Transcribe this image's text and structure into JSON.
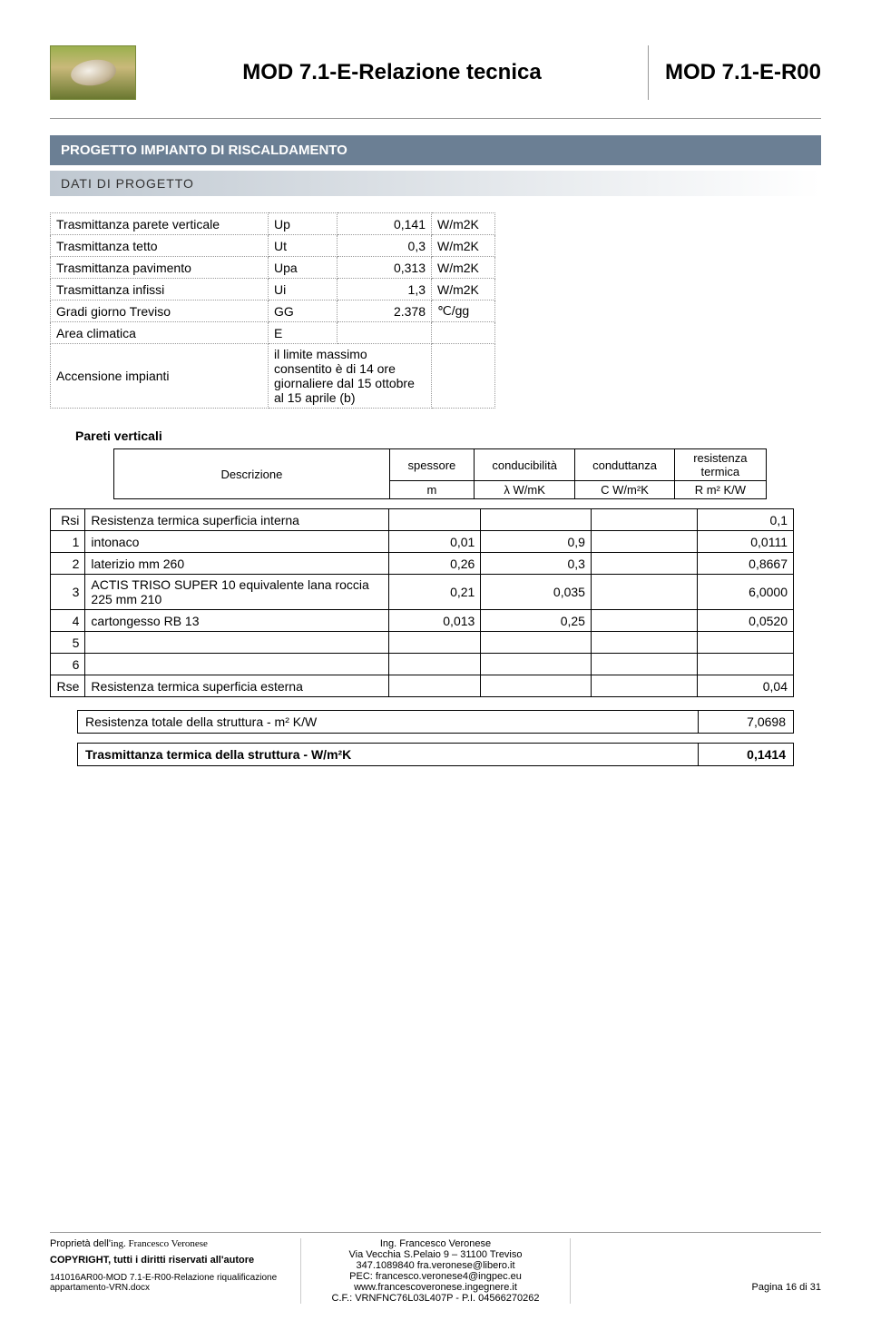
{
  "header": {
    "title_main": "MOD 7.1-E-Relazione tecnica",
    "title_code": "MOD 7.1-E-R00"
  },
  "section": {
    "title": "PROGETTO IMPIANTO DI RISCALDAMENTO",
    "subtitle": "DATI DI PROGETTO"
  },
  "params": {
    "rows": [
      {
        "label": "Trasmittanza parete verticale",
        "sym": "Up",
        "val": "0,141",
        "unit": "W/m2K"
      },
      {
        "label": "Trasmittanza tetto",
        "sym": "Ut",
        "val": "0,3",
        "unit": "W/m2K"
      },
      {
        "label": "Trasmittanza pavimento",
        "sym": "Upa",
        "val": "0,313",
        "unit": "W/m2K"
      },
      {
        "label": "Trasmittanza infissi",
        "sym": "Ui",
        "val": "1,3",
        "unit": "W/m2K"
      },
      {
        "label": "Gradi giorno Treviso",
        "sym": "GG",
        "val": "2.378",
        "unit": "℃/gg"
      },
      {
        "label": "Area climatica",
        "sym": "E",
        "val": "",
        "unit": ""
      },
      {
        "label": "Accensione impianti",
        "sym": "il limite massimo consentito è di 14 ore giornaliere dal 15 ottobre al 15 aprile (b)",
        "val": "",
        "unit": ""
      }
    ]
  },
  "pareti_label": "Pareti verticali",
  "col_headers": {
    "desc": "Descrizione",
    "sp": "spessore",
    "sp_u": "m",
    "cond": "conducibilità",
    "cond_u": "λ W/mK",
    "condt": "conduttanza",
    "condt_u": "C W/m²K",
    "res": "resistenza termica",
    "res_u": "R m² K/W"
  },
  "rows": [
    {
      "idx": "Rsi",
      "desc": "Resistenza termica superficia interna",
      "a": "",
      "b": "",
      "c": "",
      "d": "0,1"
    },
    {
      "idx": "1",
      "desc": "intonaco",
      "a": "0,01",
      "b": "0,9",
      "c": "",
      "d": "0,0111"
    },
    {
      "idx": "2",
      "desc": "laterizio mm 260",
      "a": "0,26",
      "b": "0,3",
      "c": "",
      "d": "0,8667"
    },
    {
      "idx": "3",
      "desc": "ACTIS TRISO SUPER 10 equivalente lana roccia 225 mm 210",
      "a": "0,21",
      "b": "0,035",
      "c": "",
      "d": "6,0000"
    },
    {
      "idx": "4",
      "desc": "cartongesso RB 13",
      "a": "0,013",
      "b": "0,25",
      "c": "",
      "d": "0,0520"
    },
    {
      "idx": "5",
      "desc": "",
      "a": "",
      "b": "",
      "c": "",
      "d": ""
    },
    {
      "idx": "6",
      "desc": "",
      "a": "",
      "b": "",
      "c": "",
      "d": ""
    },
    {
      "idx": "Rse",
      "desc": "Resistenza termica superficia esterna",
      "a": "",
      "b": "",
      "c": "",
      "d": "0,04"
    }
  ],
  "summary": {
    "r_label": "Resistenza totale della struttura - m² K/W",
    "r_val": "7,0698",
    "t_label": "Trasmittanza termica della struttura - W/m²K",
    "t_val": "0,1414"
  },
  "footer": {
    "prop_pre": "Proprietà dell'",
    "prop_name": "ing. Francesco Veronese",
    "copyright": "COPYRIGHT, tutti i diritti riservati all'autore",
    "doc": "141016AR00-MOD 7.1-E-R00-Relazione riqualificazione appartamento-VRN.docx",
    "mid1": "Ing. Francesco Veronese",
    "mid2": "Via Vecchia S.Pelaio 9 – 31100 Treviso",
    "mid3": "347.1089840 fra.veronese@libero.it",
    "mid4": "PEC: francesco.veronese4@ingpec.eu",
    "mid5": "www.francescoveronese.ingegnere.it",
    "mid6": "C.F.: VRNFNC76L03L407P - P.I. 04566270262",
    "page": "Pagina 16 di 31"
  }
}
